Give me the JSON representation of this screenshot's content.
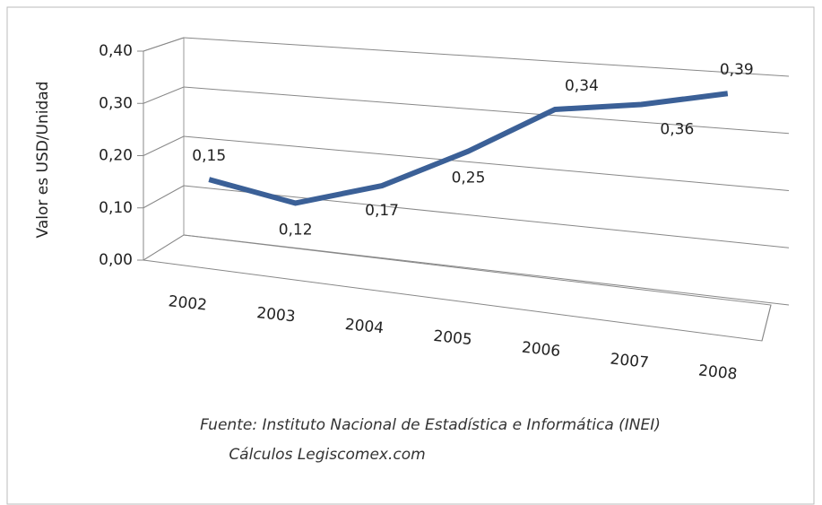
{
  "chart_data": {
    "type": "line",
    "y_label": "Valor es USD/Unidad",
    "categories": [
      "2002",
      "2003",
      "2004",
      "2005",
      "2006",
      "2007",
      "2008"
    ],
    "values": [
      0.15,
      0.12,
      0.17,
      0.25,
      0.34,
      0.36,
      0.39
    ],
    "value_labels": [
      "0,15",
      "0,12",
      "0,17",
      "0,25",
      "0,34",
      "0,36",
      "0,39"
    ],
    "color": "#3b6097",
    "ylim": [
      0,
      0.4
    ],
    "yticks": [
      {
        "value": 0,
        "label": "0,00"
      },
      {
        "value": 0.1,
        "label": "0,10"
      },
      {
        "value": 0.2,
        "label": "0,20"
      },
      {
        "value": 0.3,
        "label": "0,30"
      },
      {
        "value": 0.4,
        "label": "0,40"
      }
    ],
    "grid": true,
    "source": [
      "Fuente: Instituto Nacional de Estadística e Informática (INEI)",
      "Cálculos Legiscomex.com"
    ]
  }
}
